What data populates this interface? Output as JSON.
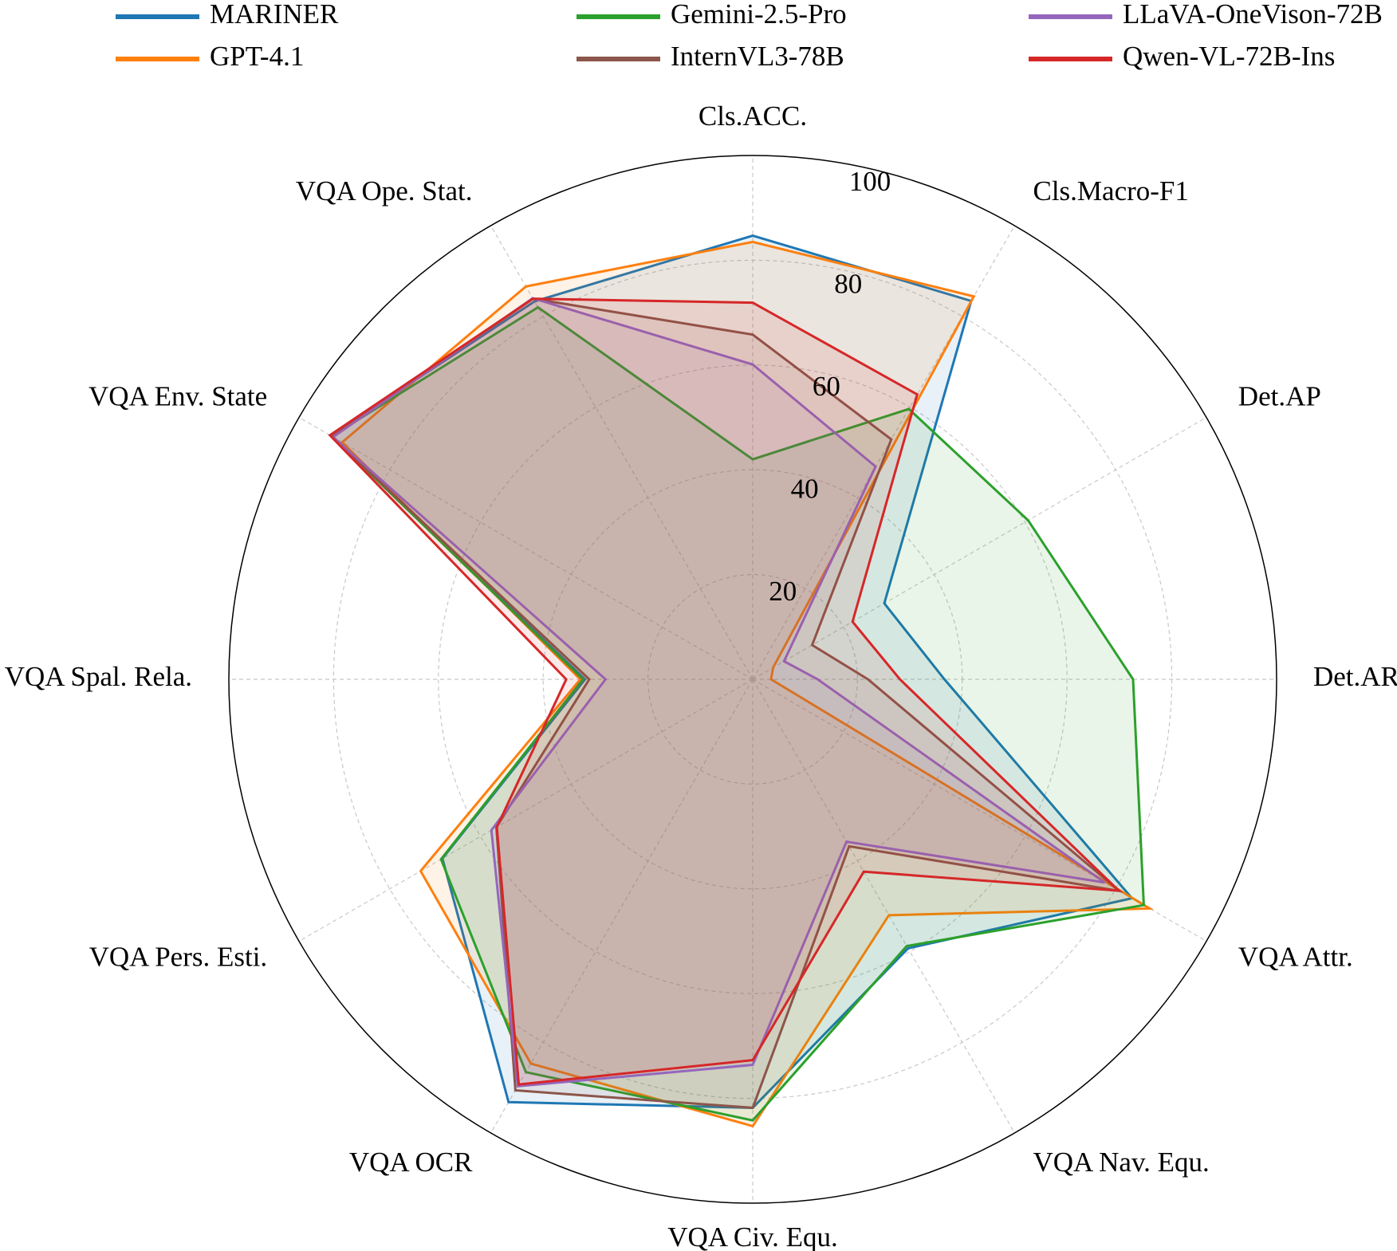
{
  "chart_data": {
    "type": "radar",
    "axes": [
      "Cls.ACC.",
      "Cls.Macro-F1",
      "Det.AP",
      "Det.AR",
      "VQA Attr.",
      "VQA Nav. Equ.",
      "VQA Civ. Equ.",
      "VQA OCR",
      "VQA Pers. Esti.",
      "VQA Spal. Rela.",
      "VQA Env. State",
      "VQA Ope. Stat."
    ],
    "radial_ticks": [
      20,
      40,
      60,
      80,
      100
    ],
    "rlim": [
      0,
      100
    ],
    "grid": true,
    "legend_placement": "top",
    "series": [
      {
        "name": "MARINER",
        "color": "#1f77b4",
        "values": [
          84.7,
          83.4,
          29.0,
          36.6,
          83.6,
          59.3,
          81.8,
          93.2,
          68.4,
          32.0,
          93.0,
          83.3
        ]
      },
      {
        "name": "GPT-4.1",
        "color": "#ff7f0e",
        "values": [
          83.5,
          84.4,
          4.5,
          3.5,
          87.5,
          52.0,
          85.3,
          84.7,
          73.2,
          32.9,
          90.5,
          86.6
        ]
      },
      {
        "name": "Gemini-2.5-Pro",
        "color": "#2ca02c",
        "values": [
          42.0,
          59.6,
          60.7,
          72.6,
          86.2,
          58.8,
          84.2,
          86.6,
          68.7,
          32.4,
          92.8,
          82.0
        ]
      },
      {
        "name": "InternVL3-78B",
        "color": "#8c564b",
        "values": [
          65.8,
          52.9,
          13.1,
          22.0,
          80.8,
          36.8,
          81.8,
          90.6,
          56.5,
          31.2,
          92.7,
          83.9
        ]
      },
      {
        "name": "LLaVA-OneVison-72B",
        "color": "#9467bd",
        "values": [
          60.1,
          46.9,
          6.9,
          12.4,
          77.6,
          35.8,
          73.6,
          89.7,
          57.6,
          28.1,
          92.5,
          84.0
        ]
      },
      {
        "name": "Qwen-VL-72B-Ins",
        "color": "#d62728",
        "values": [
          71.9,
          62.8,
          22.0,
          28.1,
          80.7,
          42.4,
          72.7,
          89.3,
          56.4,
          35.6,
          93.2,
          83.9
        ]
      }
    ],
    "legend_order": [
      "MARINER",
      "Gemini-2.5-Pro",
      "LLaVA-OneVison-72B",
      "GPT-4.1",
      "InternVL3-78B",
      "Qwen-VL-72B-Ins"
    ]
  }
}
